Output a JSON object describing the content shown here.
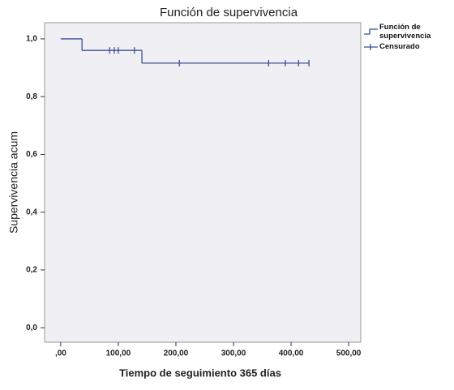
{
  "chart_data": {
    "type": "step",
    "title": "Función de supervivencia",
    "xlabel": "Tiempo de seguimiento 365 días",
    "ylabel": "Supervivencia acum",
    "xlim": [
      -28,
      521
    ],
    "ylim": [
      -0.05,
      1.056
    ],
    "xticks": [
      {
        "value": 0,
        "label": ",00"
      },
      {
        "value": 100,
        "label": "100,00"
      },
      {
        "value": 200,
        "label": "200,00"
      },
      {
        "value": 300,
        "label": "300,00"
      },
      {
        "value": 400,
        "label": "400,00"
      },
      {
        "value": 500,
        "label": "500,00"
      }
    ],
    "yticks": [
      {
        "value": 0,
        "label": "0,0"
      },
      {
        "value": 0.2,
        "label": "0,2"
      },
      {
        "value": 0.4,
        "label": "0,4"
      },
      {
        "value": 0.6,
        "label": "0,6"
      },
      {
        "value": 0.8,
        "label": "0,8"
      },
      {
        "value": 1.0,
        "label": "1,0"
      }
    ],
    "series": [
      {
        "name": "Función de supervivencia",
        "color": "#3b4f9a",
        "x": [
          0,
          37,
          141,
          432
        ],
        "values": [
          1.0,
          0.96,
          0.916,
          0.916
        ]
      },
      {
        "name": "Censurado",
        "color": "#3b4f9a",
        "x": [
          85,
          93,
          100,
          128,
          206,
          361,
          390,
          413,
          431
        ],
        "values": [
          0.96,
          0.96,
          0.96,
          0.96,
          0.916,
          0.916,
          0.916,
          0.916,
          0.916
        ]
      }
    ]
  }
}
